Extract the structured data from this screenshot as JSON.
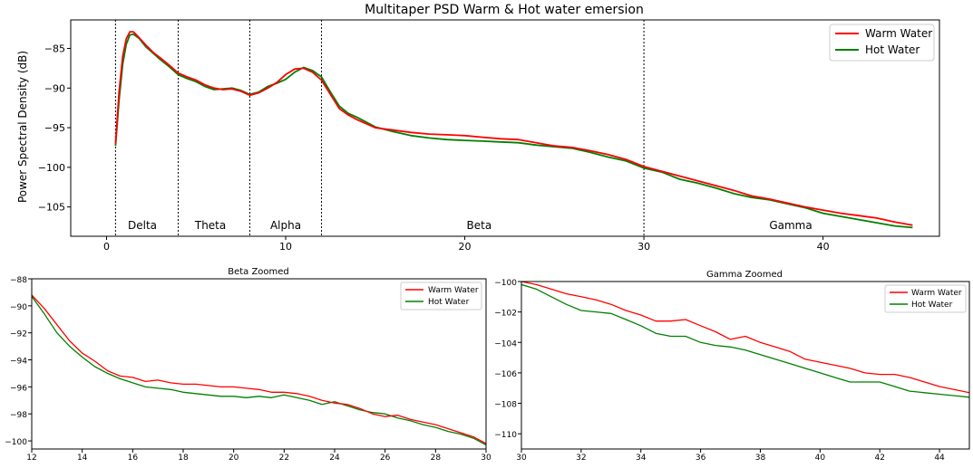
{
  "figure": {
    "colors": {
      "warm": "#ff0000",
      "hot": "#008000"
    }
  },
  "chart_data": [
    {
      "id": "main",
      "type": "line",
      "title": "Multitaper PSD Warm & Hot water emersion",
      "xlabel": "",
      "ylabel": "Power Spectral Density (dB)",
      "xlim": [
        -2,
        46.5
      ],
      "ylim": [
        -108.7,
        -81.4
      ],
      "xticks": [
        0,
        10,
        20,
        30,
        40
      ],
      "yticks": [
        -85,
        -90,
        -95,
        -100,
        -105
      ],
      "grid": false,
      "legend": {
        "position": "top-right"
      },
      "band_edges": [
        0.5,
        4,
        8,
        12,
        30
      ],
      "bands": [
        {
          "label": "Delta",
          "x": 2.0
        },
        {
          "label": "Theta",
          "x": 5.8
        },
        {
          "label": "Alpha",
          "x": 10.0
        },
        {
          "label": "Beta",
          "x": 20.8
        },
        {
          "label": "Gamma",
          "x": 38.2
        }
      ],
      "series": [
        {
          "name": "Warm Water",
          "color": "#ff0000",
          "x": [
            0.5,
            0.7,
            0.9,
            1.1,
            1.3,
            1.5,
            1.8,
            2.2,
            2.6,
            3.0,
            3.5,
            4.0,
            4.5,
            5.0,
            5.5,
            6.0,
            6.5,
            7.0,
            7.5,
            8.0,
            8.5,
            9.0,
            9.5,
            10.0,
            10.5,
            11.0,
            11.5,
            12.0,
            12.5,
            13.0,
            13.5,
            14.0,
            15.0,
            16.0,
            17.0,
            18.0,
            19.0,
            20.0,
            21.0,
            22.0,
            23.0,
            24.0,
            25.0,
            26.0,
            27.0,
            28.0,
            29.0,
            30.0,
            31.0,
            32.0,
            33.0,
            34.0,
            35.0,
            36.0,
            37.0,
            38.0,
            39.0,
            40.0,
            41.0,
            42.0,
            43.0,
            44.0,
            45.0
          ],
          "y": [
            -97.0,
            -90.5,
            -86.0,
            -83.8,
            -82.9,
            -82.9,
            -83.6,
            -84.6,
            -85.5,
            -86.2,
            -87.1,
            -88.1,
            -88.6,
            -89.0,
            -89.6,
            -90.0,
            -90.2,
            -90.1,
            -90.4,
            -90.9,
            -90.6,
            -90.0,
            -89.3,
            -88.3,
            -87.6,
            -87.5,
            -88.0,
            -89.0,
            -90.8,
            -92.6,
            -93.4,
            -94.0,
            -95.0,
            -95.3,
            -95.6,
            -95.8,
            -95.9,
            -96.0,
            -96.2,
            -96.4,
            -96.5,
            -96.9,
            -97.3,
            -97.5,
            -97.9,
            -98.4,
            -99.0,
            -99.9,
            -100.5,
            -101.1,
            -101.7,
            -102.3,
            -102.9,
            -103.6,
            -104.0,
            -104.5,
            -105.0,
            -105.4,
            -105.8,
            -106.1,
            -106.4,
            -106.9,
            -107.3
          ]
        },
        {
          "name": "Hot Water",
          "color": "#008000",
          "x": [
            0.5,
            0.7,
            0.9,
            1.1,
            1.3,
            1.5,
            1.8,
            2.2,
            2.6,
            3.0,
            3.5,
            4.0,
            4.5,
            5.0,
            5.5,
            6.0,
            6.5,
            7.0,
            7.5,
            8.0,
            8.5,
            9.0,
            9.5,
            10.0,
            10.5,
            11.0,
            11.5,
            12.0,
            12.5,
            13.0,
            13.5,
            14.0,
            15.0,
            16.0,
            17.0,
            18.0,
            19.0,
            20.0,
            21.0,
            22.0,
            23.0,
            24.0,
            25.0,
            26.0,
            27.0,
            28.0,
            29.0,
            30.0,
            31.0,
            32.0,
            33.0,
            34.0,
            35.0,
            36.0,
            37.0,
            38.0,
            39.0,
            40.0,
            41.0,
            42.0,
            43.0,
            44.0,
            45.0
          ],
          "y": [
            -97.3,
            -91.5,
            -87.0,
            -84.5,
            -83.3,
            -83.2,
            -83.7,
            -84.8,
            -85.6,
            -86.4,
            -87.3,
            -88.3,
            -88.8,
            -89.2,
            -89.8,
            -90.2,
            -90.1,
            -90.0,
            -90.3,
            -90.8,
            -90.5,
            -89.8,
            -89.4,
            -88.9,
            -88.0,
            -87.4,
            -87.8,
            -88.6,
            -90.5,
            -92.3,
            -93.2,
            -93.7,
            -94.9,
            -95.5,
            -96.0,
            -96.3,
            -96.5,
            -96.6,
            -96.7,
            -96.8,
            -96.9,
            -97.2,
            -97.4,
            -97.6,
            -98.1,
            -98.7,
            -99.2,
            -100.1,
            -100.6,
            -101.5,
            -102.0,
            -102.6,
            -103.3,
            -103.8,
            -104.1,
            -104.6,
            -105.1,
            -105.8,
            -106.2,
            -106.6,
            -107.0,
            -107.4,
            -107.6
          ]
        }
      ]
    },
    {
      "id": "beta",
      "type": "line",
      "title": "Beta Zoomed",
      "xlabel": "",
      "ylabel": "",
      "xlim": [
        12,
        30
      ],
      "ylim": [
        -100.6,
        -88.0
      ],
      "xticks": [
        12,
        14,
        16,
        18,
        20,
        22,
        24,
        26,
        28,
        30
      ],
      "yticks": [
        -88,
        -90,
        -92,
        -94,
        -96,
        -98,
        -100
      ],
      "grid": false,
      "legend": {
        "position": "top-right"
      },
      "series": [
        {
          "name": "Warm Water",
          "color": "#ff0000",
          "x": [
            12.0,
            12.5,
            13.0,
            13.5,
            14.0,
            14.5,
            15.0,
            15.5,
            16.0,
            16.5,
            17.0,
            17.5,
            18.0,
            18.5,
            19.0,
            19.5,
            20.0,
            20.5,
            21.0,
            21.5,
            22.0,
            22.5,
            23.0,
            23.5,
            24.0,
            24.5,
            25.0,
            25.5,
            26.0,
            26.5,
            27.0,
            27.5,
            28.0,
            28.5,
            29.0,
            29.5,
            30.0
          ],
          "y": [
            -89.2,
            -90.2,
            -91.4,
            -92.6,
            -93.5,
            -94.1,
            -94.8,
            -95.2,
            -95.3,
            -95.6,
            -95.5,
            -95.7,
            -95.8,
            -95.8,
            -95.9,
            -96.0,
            -96.0,
            -96.1,
            -96.2,
            -96.4,
            -96.4,
            -96.5,
            -96.7,
            -97.0,
            -97.2,
            -97.3,
            -97.6,
            -98.0,
            -98.2,
            -98.1,
            -98.4,
            -98.6,
            -98.8,
            -99.1,
            -99.4,
            -99.7,
            -100.2
          ]
        },
        {
          "name": "Hot Water",
          "color": "#008000",
          "x": [
            12.0,
            12.5,
            13.0,
            13.5,
            14.0,
            14.5,
            15.0,
            15.5,
            16.0,
            16.5,
            17.0,
            17.5,
            18.0,
            18.5,
            19.0,
            19.5,
            20.0,
            20.5,
            21.0,
            21.5,
            22.0,
            22.5,
            23.0,
            23.5,
            24.0,
            24.5,
            25.0,
            25.5,
            26.0,
            26.5,
            27.0,
            27.5,
            28.0,
            28.5,
            29.0,
            29.5,
            30.0
          ],
          "y": [
            -89.3,
            -90.6,
            -92.0,
            -93.0,
            -93.8,
            -94.5,
            -95.0,
            -95.4,
            -95.7,
            -96.0,
            -96.1,
            -96.2,
            -96.4,
            -96.5,
            -96.6,
            -96.7,
            -96.7,
            -96.8,
            -96.7,
            -96.8,
            -96.6,
            -96.8,
            -97.0,
            -97.3,
            -97.1,
            -97.4,
            -97.7,
            -97.9,
            -98.0,
            -98.3,
            -98.5,
            -98.8,
            -99.0,
            -99.3,
            -99.5,
            -99.8,
            -100.3
          ]
        }
      ]
    },
    {
      "id": "gamma",
      "type": "line",
      "title": "Gamma Zoomed",
      "xlabel": "",
      "ylabel": "",
      "xlim": [
        30,
        45
      ],
      "ylim": [
        -111.0,
        -100.0
      ],
      "xticks": [
        30,
        32,
        34,
        36,
        38,
        40,
        42,
        44
      ],
      "yticks": [
        -100,
        -102,
        -104,
        -106,
        -108,
        -110
      ],
      "grid": false,
      "legend": {
        "position": "top-right"
      },
      "series": [
        {
          "name": "Warm Water",
          "color": "#ff0000",
          "x": [
            30.0,
            30.5,
            31.0,
            31.5,
            32.0,
            32.5,
            33.0,
            33.5,
            34.0,
            34.5,
            35.0,
            35.5,
            36.0,
            36.5,
            37.0,
            37.5,
            38.0,
            38.5,
            39.0,
            39.5,
            40.0,
            40.5,
            41.0,
            41.5,
            42.0,
            42.5,
            43.0,
            43.5,
            44.0,
            44.5,
            45.0
          ],
          "y": [
            -100.0,
            -100.2,
            -100.5,
            -100.8,
            -101.0,
            -101.2,
            -101.5,
            -101.9,
            -102.2,
            -102.6,
            -102.6,
            -102.5,
            -102.9,
            -103.3,
            -103.8,
            -103.6,
            -104.0,
            -104.3,
            -104.6,
            -105.1,
            -105.3,
            -105.5,
            -105.7,
            -106.0,
            -106.1,
            -106.1,
            -106.3,
            -106.6,
            -106.9,
            -107.1,
            -107.3
          ]
        },
        {
          "name": "Hot Water",
          "color": "#008000",
          "x": [
            30.0,
            30.5,
            31.0,
            31.5,
            32.0,
            32.5,
            33.0,
            33.5,
            34.0,
            34.5,
            35.0,
            35.5,
            36.0,
            36.5,
            37.0,
            37.5,
            38.0,
            38.5,
            39.0,
            39.5,
            40.0,
            40.5,
            41.0,
            41.5,
            42.0,
            42.5,
            43.0,
            43.5,
            44.0,
            44.5,
            45.0
          ],
          "y": [
            -100.2,
            -100.5,
            -101.0,
            -101.5,
            -101.9,
            -102.0,
            -102.1,
            -102.5,
            -102.9,
            -103.4,
            -103.6,
            -103.6,
            -104.0,
            -104.2,
            -104.3,
            -104.5,
            -104.8,
            -105.1,
            -105.4,
            -105.7,
            -106.0,
            -106.3,
            -106.6,
            -106.6,
            -106.6,
            -106.9,
            -107.2,
            -107.3,
            -107.4,
            -107.5,
            -107.6
          ]
        }
      ]
    }
  ]
}
